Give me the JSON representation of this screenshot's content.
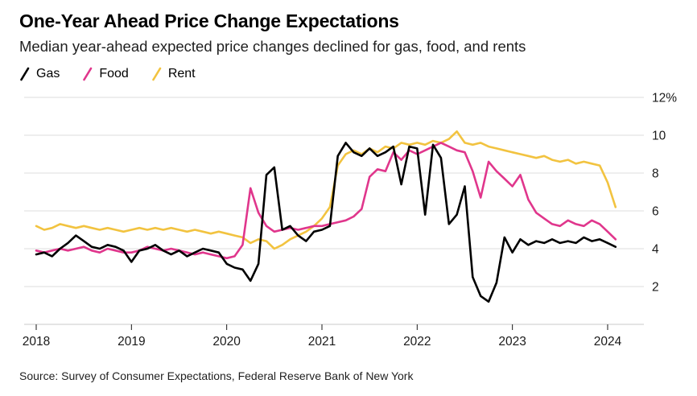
{
  "header": {
    "title": "One-Year Ahead Price Change Expectations",
    "subtitle": "Median year-ahead expected price changes declined for gas, food, and rents"
  },
  "legend": {
    "items": [
      {
        "label": "Gas",
        "color": "#000000"
      },
      {
        "label": "Food",
        "color": "#e0368c"
      },
      {
        "label": "Rent",
        "color": "#f2c340"
      }
    ]
  },
  "chart_data": {
    "type": "line",
    "title": "One-Year Ahead Price Change Expectations",
    "subtitle": "Median year-ahead expected price changes declined for gas, food, and rents",
    "x_unit": "month",
    "x_start": "2018-01",
    "x_end": "2024-02",
    "xlabel": "",
    "ylabel": "",
    "ylim": [
      0,
      12
    ],
    "grid": "horizontal",
    "yaxis_side": "right",
    "xticks": [
      2018,
      2019,
      2020,
      2021,
      2022,
      2023,
      2024
    ],
    "yticks": [
      2,
      4,
      6,
      8,
      10,
      12
    ],
    "ytick_labels": [
      "2",
      "4",
      "6",
      "8",
      "10",
      "12%"
    ],
    "legend_position": "top-left",
    "series": [
      {
        "name": "Gas",
        "color": "#000000",
        "values": [
          3.7,
          3.8,
          3.6,
          4.0,
          4.3,
          4.7,
          4.4,
          4.1,
          4.0,
          4.2,
          4.1,
          3.9,
          3.3,
          3.9,
          4.0,
          4.2,
          3.9,
          3.7,
          3.9,
          3.6,
          3.8,
          4.0,
          3.9,
          3.8,
          3.2,
          3.0,
          2.9,
          2.3,
          3.2,
          7.9,
          8.3,
          5.0,
          5.2,
          4.7,
          4.4,
          4.9,
          5.0,
          5.2,
          8.9,
          9.6,
          9.1,
          8.9,
          9.3,
          8.9,
          9.1,
          9.4,
          7.4,
          9.4,
          9.3,
          5.8,
          9.5,
          8.8,
          5.3,
          5.8,
          7.3,
          2.5,
          1.5,
          1.2,
          2.2,
          4.6,
          3.8,
          4.5,
          4.2,
          4.4,
          4.3,
          4.5,
          4.3,
          4.4,
          4.3,
          4.6,
          4.4,
          4.5,
          4.3,
          4.1
        ]
      },
      {
        "name": "Food",
        "color": "#e0368c",
        "values": [
          3.9,
          3.8,
          3.9,
          4.0,
          3.9,
          4.0,
          4.1,
          3.9,
          3.8,
          4.0,
          3.9,
          3.8,
          3.8,
          3.9,
          4.1,
          4.0,
          3.9,
          4.0,
          3.9,
          3.8,
          3.7,
          3.8,
          3.7,
          3.6,
          3.5,
          3.6,
          4.2,
          7.2,
          5.9,
          5.2,
          4.9,
          5.0,
          5.1,
          5.0,
          5.1,
          5.2,
          5.2,
          5.3,
          5.4,
          5.5,
          5.7,
          6.1,
          7.8,
          8.2,
          8.1,
          9.1,
          8.7,
          9.2,
          9.0,
          9.2,
          9.4,
          9.6,
          9.4,
          9.2,
          9.1,
          8.1,
          6.7,
          8.6,
          8.1,
          7.7,
          7.3,
          7.9,
          6.6,
          5.9,
          5.6,
          5.3,
          5.2,
          5.5,
          5.3,
          5.2,
          5.5,
          5.3,
          4.9,
          4.5
        ]
      },
      {
        "name": "Rent",
        "color": "#f2c340",
        "values": [
          5.2,
          5.0,
          5.1,
          5.3,
          5.2,
          5.1,
          5.2,
          5.1,
          5.0,
          5.1,
          5.0,
          4.9,
          5.0,
          5.1,
          5.0,
          5.1,
          5.0,
          5.1,
          5.0,
          4.9,
          5.0,
          4.9,
          4.8,
          4.9,
          4.8,
          4.7,
          4.6,
          4.3,
          4.5,
          4.4,
          4.0,
          4.2,
          4.5,
          4.7,
          4.9,
          5.2,
          5.6,
          6.2,
          8.4,
          9.0,
          9.2,
          9.0,
          9.3,
          9.1,
          9.4,
          9.3,
          9.6,
          9.5,
          9.6,
          9.5,
          9.7,
          9.6,
          9.8,
          10.2,
          9.6,
          9.5,
          9.6,
          9.4,
          9.3,
          9.2,
          9.1,
          9.0,
          8.9,
          8.8,
          8.9,
          8.7,
          8.6,
          8.7,
          8.5,
          8.6,
          8.5,
          8.4,
          7.5,
          6.2
        ]
      }
    ]
  },
  "footer": {
    "source": "Source: Survey of Consumer Expectations, Federal Reserve Bank of New York"
  }
}
